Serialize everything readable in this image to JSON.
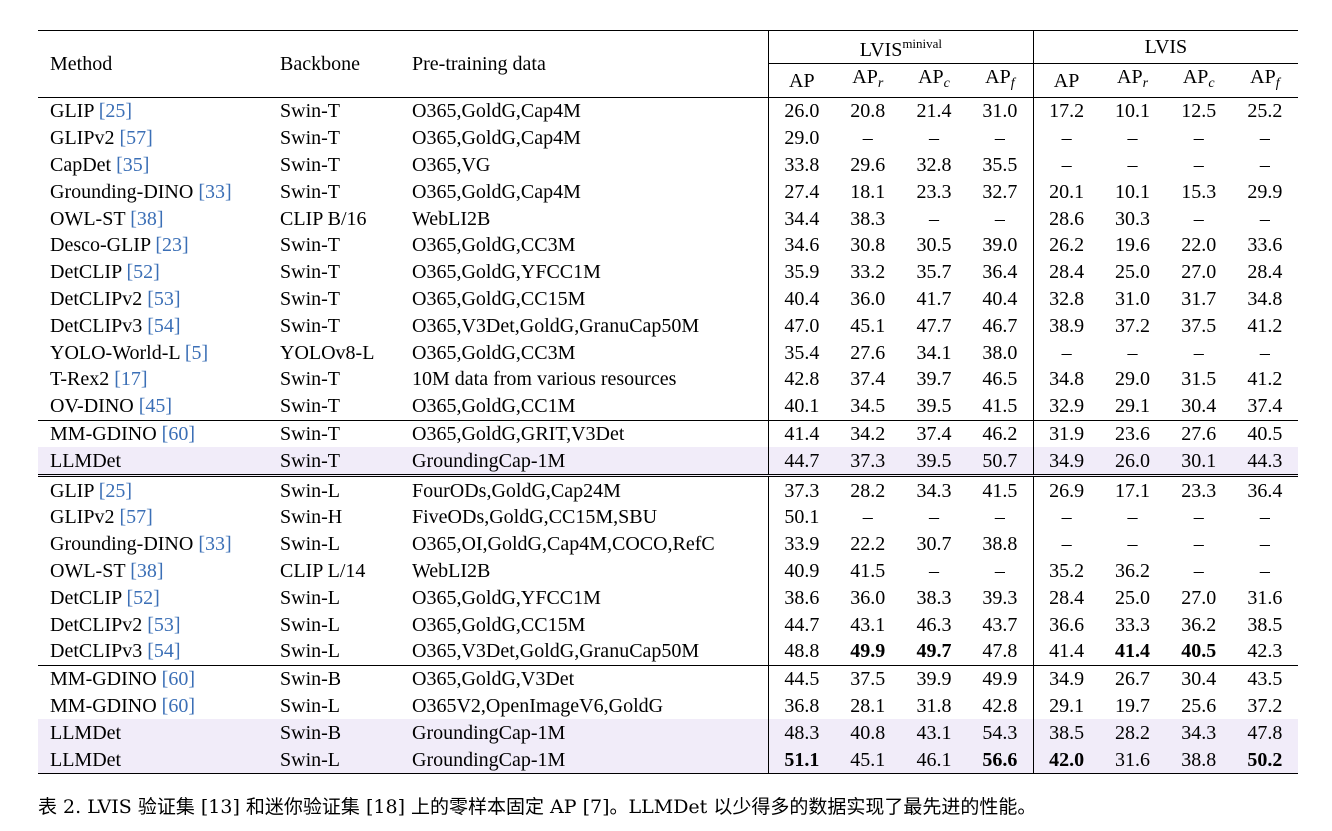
{
  "table": {
    "headers": {
      "method": "Method",
      "backbone": "Backbone",
      "pretraining": "Pre-training data",
      "group1": "LVIS",
      "group1_sup": "minival",
      "group2": "LVIS",
      "ap": "AP",
      "apr": "AP",
      "apr_sub": "r",
      "apc": "AP",
      "apc_sub": "c",
      "apf": "AP",
      "apf_sub": "f"
    },
    "rows": [
      {
        "method": "GLIP",
        "ref": "[25]",
        "backbone": "Swin-T",
        "data": "O365,GoldG,Cap4M",
        "v": [
          "26.0",
          "20.8",
          "21.4",
          "31.0",
          "17.2",
          "10.1",
          "12.5",
          "25.2"
        ]
      },
      {
        "method": "GLIPv2",
        "ref": "[57]",
        "backbone": "Swin-T",
        "data": "O365,GoldG,Cap4M",
        "v": [
          "29.0",
          "–",
          "–",
          "–",
          "–",
          "–",
          "–",
          "–"
        ]
      },
      {
        "method": "CapDet",
        "ref": "[35]",
        "backbone": "Swin-T",
        "data": "O365,VG",
        "v": [
          "33.8",
          "29.6",
          "32.8",
          "35.5",
          "–",
          "–",
          "–",
          "–"
        ]
      },
      {
        "method": "Grounding-DINO",
        "ref": "[33]",
        "backbone": "Swin-T",
        "data": "O365,GoldG,Cap4M",
        "v": [
          "27.4",
          "18.1",
          "23.3",
          "32.7",
          "20.1",
          "10.1",
          "15.3",
          "29.9"
        ]
      },
      {
        "method": "OWL-ST",
        "ref": "[38]",
        "backbone": "CLIP B/16",
        "data": "WebLI2B",
        "v": [
          "34.4",
          "38.3",
          "–",
          "–",
          "28.6",
          "30.3",
          "–",
          "–"
        ]
      },
      {
        "method": "Desco-GLIP",
        "ref": "[23]",
        "backbone": "Swin-T",
        "data": "O365,GoldG,CC3M",
        "v": [
          "34.6",
          "30.8",
          "30.5",
          "39.0",
          "26.2",
          "19.6",
          "22.0",
          "33.6"
        ]
      },
      {
        "method": "DetCLIP",
        "ref": "[52]",
        "backbone": "Swin-T",
        "data": "O365,GoldG,YFCC1M",
        "v": [
          "35.9",
          "33.2",
          "35.7",
          "36.4",
          "28.4",
          "25.0",
          "27.0",
          "28.4"
        ]
      },
      {
        "method": "DetCLIPv2",
        "ref": "[53]",
        "backbone": "Swin-T",
        "data": "O365,GoldG,CC15M",
        "v": [
          "40.4",
          "36.0",
          "41.7",
          "40.4",
          "32.8",
          "31.0",
          "31.7",
          "34.8"
        ]
      },
      {
        "method": "DetCLIPv3",
        "ref": "[54]",
        "backbone": "Swin-T",
        "data": "O365,V3Det,GoldG,GranuCap50M",
        "v": [
          "47.0",
          "45.1",
          "47.7",
          "46.7",
          "38.9",
          "37.2",
          "37.5",
          "41.2"
        ]
      },
      {
        "method": "YOLO-World-L",
        "ref": "[5]",
        "backbone": "YOLOv8-L",
        "data": "O365,GoldG,CC3M",
        "v": [
          "35.4",
          "27.6",
          "34.1",
          "38.0",
          "–",
          "–",
          "–",
          "–"
        ]
      },
      {
        "method": "T-Rex2",
        "ref": "[17]",
        "backbone": "Swin-T",
        "data": "10M data from various resources",
        "v": [
          "42.8",
          "37.4",
          "39.7",
          "46.5",
          "34.8",
          "29.0",
          "31.5",
          "41.2"
        ]
      },
      {
        "method": "OV-DINO",
        "ref": "[45]",
        "backbone": "Swin-T",
        "data": "O365,GoldG,CC1M",
        "v": [
          "40.1",
          "34.5",
          "39.5",
          "41.5",
          "32.9",
          "29.1",
          "30.4",
          "37.4"
        ]
      },
      {
        "method": "MM-GDINO",
        "ref": "[60]",
        "backbone": "Swin-T",
        "data": "O365,GoldG,GRIT,V3Det",
        "v": [
          "41.4",
          "34.2",
          "37.4",
          "46.2",
          "31.9",
          "23.6",
          "27.6",
          "40.5"
        ]
      },
      {
        "method": "LLMDet",
        "ref": "",
        "backbone": "Swin-T",
        "data": "GroundingCap-1M",
        "v": [
          "44.7",
          "37.3",
          "39.5",
          "50.7",
          "34.9",
          "26.0",
          "30.1",
          "44.3"
        ]
      },
      {
        "method": "GLIP",
        "ref": "[25]",
        "backbone": "Swin-L",
        "data": "FourODs,GoldG,Cap24M",
        "v": [
          "37.3",
          "28.2",
          "34.3",
          "41.5",
          "26.9",
          "17.1",
          "23.3",
          "36.4"
        ]
      },
      {
        "method": "GLIPv2",
        "ref": "[57]",
        "backbone": "Swin-H",
        "data": "FiveODs,GoldG,CC15M,SBU",
        "v": [
          "50.1",
          "–",
          "–",
          "–",
          "–",
          "–",
          "–",
          "–"
        ]
      },
      {
        "method": "Grounding-DINO",
        "ref": "[33]",
        "backbone": "Swin-L",
        "data": "O365,OI,GoldG,Cap4M,COCO,RefC",
        "v": [
          "33.9",
          "22.2",
          "30.7",
          "38.8",
          "–",
          "–",
          "–",
          "–"
        ]
      },
      {
        "method": "OWL-ST",
        "ref": "[38]",
        "backbone": "CLIP L/14",
        "data": "WebLI2B",
        "v": [
          "40.9",
          "41.5",
          "–",
          "–",
          "35.2",
          "36.2",
          "–",
          "–"
        ]
      },
      {
        "method": "DetCLIP",
        "ref": "[52]",
        "backbone": "Swin-L",
        "data": "O365,GoldG,YFCC1M",
        "v": [
          "38.6",
          "36.0",
          "38.3",
          "39.3",
          "28.4",
          "25.0",
          "27.0",
          "31.6"
        ]
      },
      {
        "method": "DetCLIPv2",
        "ref": "[53]",
        "backbone": "Swin-L",
        "data": "O365,GoldG,CC15M",
        "v": [
          "44.7",
          "43.1",
          "46.3",
          "43.7",
          "36.6",
          "33.3",
          "36.2",
          "38.5"
        ]
      },
      {
        "method": "DetCLIPv3",
        "ref": "[54]",
        "backbone": "Swin-L",
        "data": "O365,V3Det,GoldG,GranuCap50M",
        "v": [
          "48.8",
          "49.9",
          "49.7",
          "47.8",
          "41.4",
          "41.4",
          "40.5",
          "42.3"
        ],
        "bold": [
          1,
          2,
          5,
          6
        ]
      },
      {
        "method": "MM-GDINO",
        "ref": "[60]",
        "backbone": "Swin-B",
        "data": "O365,GoldG,V3Det",
        "v": [
          "44.5",
          "37.5",
          "39.9",
          "49.9",
          "34.9",
          "26.7",
          "30.4",
          "43.5"
        ]
      },
      {
        "method": "MM-GDINO",
        "ref": "[60]",
        "backbone": "Swin-L",
        "data": "O365V2,OpenImageV6,GoldG",
        "v": [
          "36.8",
          "28.1",
          "31.8",
          "42.8",
          "29.1",
          "19.7",
          "25.6",
          "37.2"
        ]
      },
      {
        "method": "LLMDet",
        "ref": "",
        "backbone": "Swin-B",
        "data": "GroundingCap-1M",
        "v": [
          "48.3",
          "40.8",
          "43.1",
          "54.3",
          "38.5",
          "28.2",
          "34.3",
          "47.8"
        ]
      },
      {
        "method": "LLMDet",
        "ref": "",
        "backbone": "Swin-L",
        "data": "GroundingCap-1M",
        "v": [
          "51.1",
          "45.1",
          "46.1",
          "56.6",
          "42.0",
          "31.6",
          "38.8",
          "50.2"
        ],
        "bold": [
          0,
          3,
          4,
          7
        ]
      }
    ]
  },
  "caption": "表 2. LVIS 验证集 [13] 和迷你验证集 [18] 上的零样本固定 AP [7]。LLMDet 以少得多的数据实现了最先进的性能。",
  "colors": {
    "highlight": "#f1ecf9",
    "citation": "#3b6fb6"
  }
}
